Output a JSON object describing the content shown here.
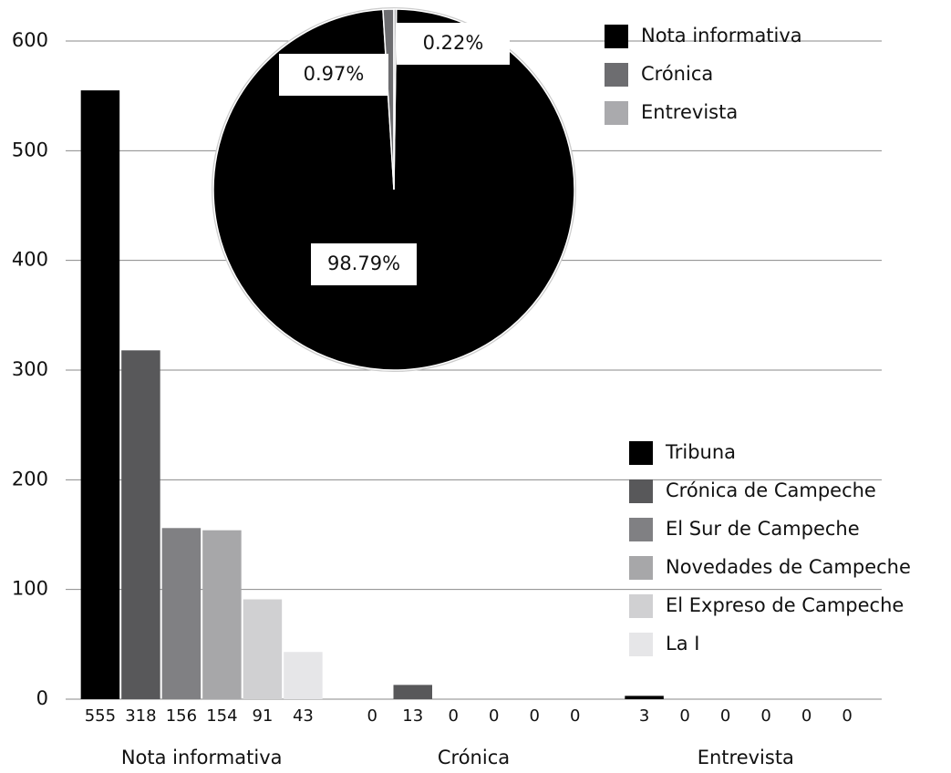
{
  "chart_data": [
    {
      "type": "bar",
      "categories": [
        "Nota informativa",
        "Crónica",
        "Entrevista"
      ],
      "series": [
        {
          "name": "Tribuna",
          "color": "#000000",
          "values": [
            555,
            0,
            3
          ]
        },
        {
          "name": "Crónica de Campeche",
          "color": "#58585a",
          "values": [
            318,
            13,
            0
          ]
        },
        {
          "name": "El Sur de Campeche",
          "color": "#808083",
          "values": [
            156,
            0,
            0
          ]
        },
        {
          "name": "Novedades de Campeche",
          "color": "#a7a7a9",
          "values": [
            154,
            0,
            0
          ]
        },
        {
          "name": "El Expreso de Campeche",
          "color": "#d0d0d2",
          "values": [
            91,
            0,
            0
          ]
        },
        {
          "name": "La I",
          "color": "#e6e6e8",
          "values": [
            43,
            0,
            0
          ]
        }
      ],
      "ylim": [
        0,
        600
      ],
      "yticks": [
        0,
        100,
        200,
        300,
        400,
        500,
        600
      ],
      "grid": true
    },
    {
      "type": "pie",
      "categories": [
        "Nota informativa",
        "Crónica",
        "Entrevista"
      ],
      "values": [
        98.79,
        0.97,
        0.22
      ],
      "value_labels": [
        "98.79%",
        "0.97%",
        "0.22%"
      ],
      "colors": [
        "#000000",
        "#6d6d70",
        "#aaaaad"
      ]
    }
  ]
}
